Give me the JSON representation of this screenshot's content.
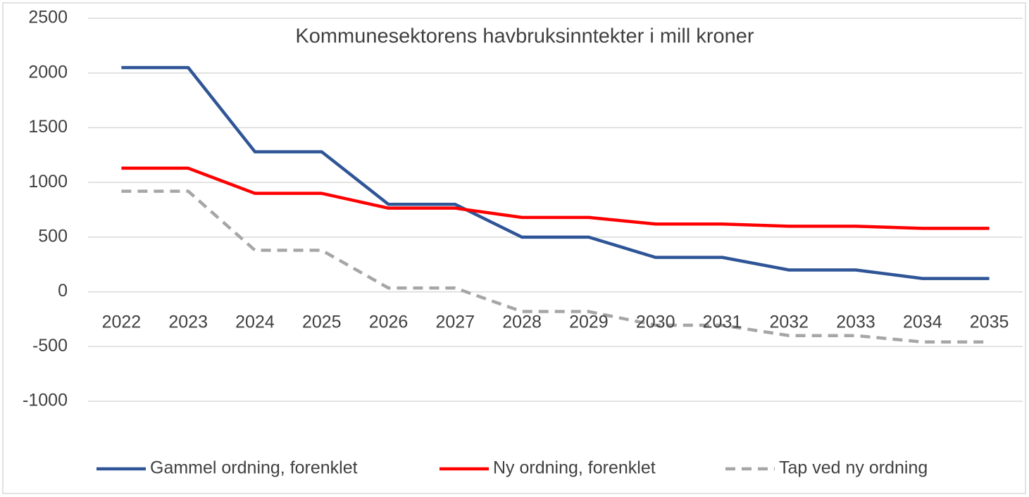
{
  "chart_data": {
    "type": "line",
    "title": "Kommunesektorens havbruksinntekter i mill kroner",
    "categories": [
      "2022",
      "2023",
      "2024",
      "2025",
      "2026",
      "2027",
      "2028",
      "2029",
      "2030",
      "2031",
      "2032",
      "2033",
      "2034",
      "2035"
    ],
    "series": [
      {
        "name": "Gammel ordning, forenklet",
        "color": "#2f5597",
        "dash": "solid",
        "values": [
          2050,
          2050,
          1280,
          1280,
          800,
          800,
          500,
          500,
          315,
          315,
          200,
          200,
          122,
          122
        ]
      },
      {
        "name": "Ny ordning, forenklet",
        "color": "#ff0000",
        "dash": "solid",
        "values": [
          1130,
          1130,
          900,
          900,
          765,
          765,
          680,
          680,
          620,
          620,
          600,
          600,
          580,
          580
        ]
      },
      {
        "name": "Tap ved ny ordning",
        "color": "#a6a6a6",
        "dash": "dashed",
        "values": [
          920,
          920,
          380,
          380,
          35,
          35,
          -180,
          -180,
          -305,
          -305,
          -400,
          -400,
          -458,
          -458
        ]
      }
    ],
    "ylim": [
      -1000,
      2500
    ],
    "yticks": [
      -1000,
      -500,
      0,
      500,
      1000,
      1500,
      2000,
      2500
    ],
    "grid": true,
    "legend": "bottom"
  }
}
